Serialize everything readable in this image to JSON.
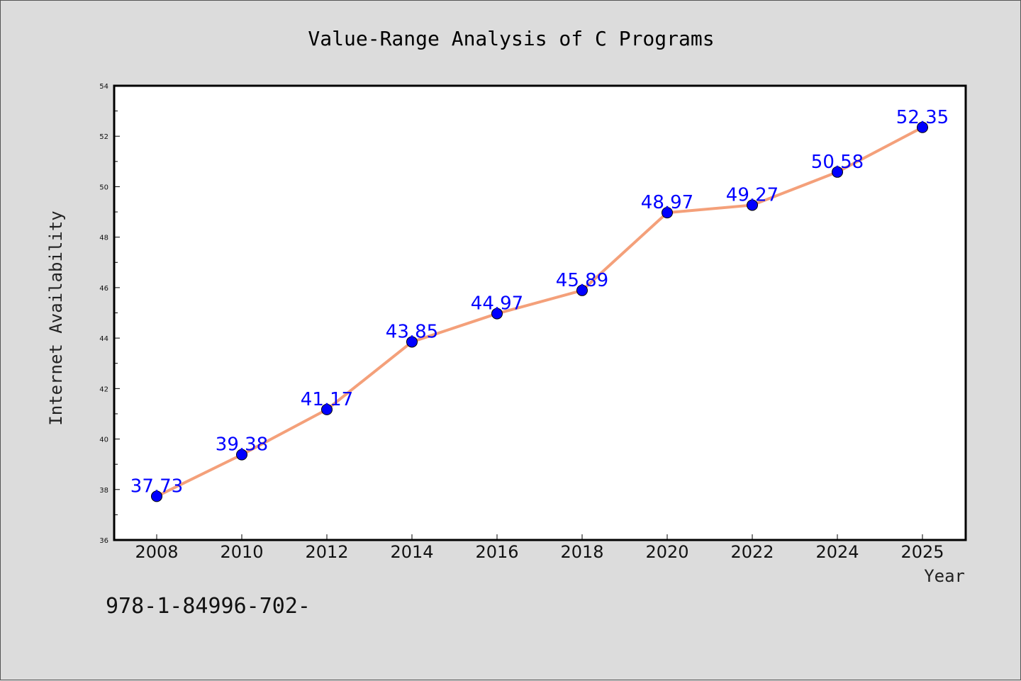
{
  "chart_data": {
    "type": "line",
    "title": "Value-Range Analysis of C Programs",
    "xlabel": "Year",
    "ylabel": "Internet Availability",
    "x": [
      "2008",
      "2010",
      "2012",
      "2014",
      "2016",
      "2018",
      "2020",
      "2022",
      "2024",
      "2025"
    ],
    "values": [
      37.73,
      39.38,
      41.17,
      43.85,
      44.97,
      45.89,
      48.97,
      49.27,
      50.58,
      52.35
    ],
    "data_labels": [
      "37.73",
      "39.38",
      "41.17",
      "43.85",
      "44.97",
      "45.89",
      "48.97",
      "49.27",
      "50.58",
      "52.35"
    ],
    "ylim": [
      36,
      54
    ],
    "yticks": [
      "36",
      "38",
      "40",
      "42",
      "44",
      "46",
      "48",
      "50",
      "52",
      "54"
    ],
    "grid": false,
    "legend": "none",
    "line_color": "#f4a07a",
    "marker_color": "#0000ff",
    "label_color": "#0000ff"
  },
  "footer_text": "978-1-84996-702-"
}
